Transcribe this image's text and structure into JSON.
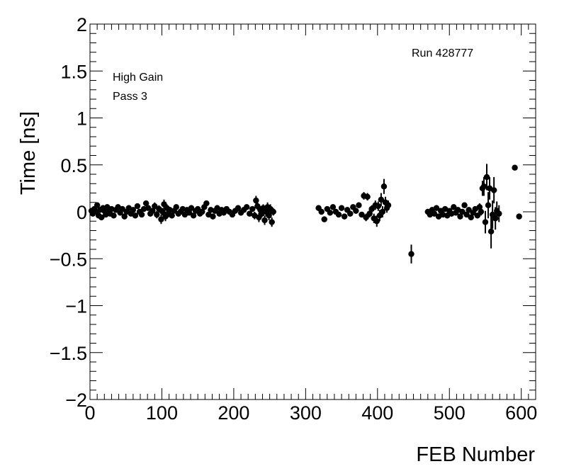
{
  "chart_data": {
    "type": "scatter",
    "title": "",
    "xlabel": "FEB Number",
    "ylabel": "Time [ns]",
    "xlim": [
      0,
      620
    ],
    "ylim": [
      -2,
      2
    ],
    "x_ticks": [
      0,
      100,
      200,
      300,
      400,
      500,
      600
    ],
    "y_ticks": [
      -2,
      -1.5,
      -1,
      -0.5,
      0,
      0.5,
      1,
      1.5,
      2
    ],
    "x_tick_labels": [
      "0",
      "100",
      "200",
      "300",
      "400",
      "500",
      "600"
    ],
    "y_tick_labels": [
      "−2",
      "−1.5",
      "−1",
      "−0.5",
      "0",
      "0.5",
      "1",
      "1.5",
      "2"
    ],
    "grid": false,
    "legend": "none",
    "annotations": {
      "run": "Run 428777",
      "gain": "High Gain",
      "pass": "Pass 3"
    },
    "marker_color": "#000000",
    "series": [
      {
        "points": [
          {
            "x": 2,
            "y": 0.01,
            "err": 0.03
          },
          {
            "x": 4,
            "y": -0.02,
            "err": 0.03
          },
          {
            "x": 6,
            "y": 0.03,
            "err": 0.03
          },
          {
            "x": 8,
            "y": 0.0,
            "err": 0.03
          },
          {
            "x": 10,
            "y": 0.07,
            "err": 0.03
          },
          {
            "x": 12,
            "y": -0.04,
            "err": 0.03
          },
          {
            "x": 14,
            "y": 0.02,
            "err": 0.03
          },
          {
            "x": 16,
            "y": -0.06,
            "err": 0.03
          },
          {
            "x": 18,
            "y": 0.04,
            "err": 0.03
          },
          {
            "x": 20,
            "y": 0.01,
            "err": 0.03
          },
          {
            "x": 22,
            "y": -0.03,
            "err": 0.03
          },
          {
            "x": 24,
            "y": 0.05,
            "err": 0.03
          },
          {
            "x": 26,
            "y": 0.0,
            "err": 0.03
          },
          {
            "x": 28,
            "y": -0.02,
            "err": 0.03
          },
          {
            "x": 30,
            "y": 0.03,
            "err": 0.03
          },
          {
            "x": 33,
            "y": -0.04,
            "err": 0.03
          },
          {
            "x": 36,
            "y": 0.02,
            "err": 0.03
          },
          {
            "x": 39,
            "y": 0.05,
            "err": 0.03
          },
          {
            "x": 42,
            "y": -0.01,
            "err": 0.03
          },
          {
            "x": 45,
            "y": 0.03,
            "err": 0.03
          },
          {
            "x": 48,
            "y": -0.05,
            "err": 0.03
          },
          {
            "x": 51,
            "y": 0.0,
            "err": 0.03
          },
          {
            "x": 54,
            "y": 0.04,
            "err": 0.03
          },
          {
            "x": 57,
            "y": -0.02,
            "err": 0.03
          },
          {
            "x": 60,
            "y": 0.02,
            "err": 0.03
          },
          {
            "x": 63,
            "y": -0.04,
            "err": 0.03
          },
          {
            "x": 66,
            "y": 0.06,
            "err": 0.03
          },
          {
            "x": 69,
            "y": 0.0,
            "err": 0.03
          },
          {
            "x": 72,
            "y": -0.03,
            "err": 0.03
          },
          {
            "x": 75,
            "y": 0.03,
            "err": 0.03
          },
          {
            "x": 78,
            "y": 0.09,
            "err": 0.03
          },
          {
            "x": 81,
            "y": 0.04,
            "err": 0.03
          },
          {
            "x": 84,
            "y": -0.02,
            "err": 0.03
          },
          {
            "x": 87,
            "y": 0.01,
            "err": 0.03
          },
          {
            "x": 90,
            "y": 0.06,
            "err": 0.04
          },
          {
            "x": 93,
            "y": -0.03,
            "err": 0.04
          },
          {
            "x": 96,
            "y": 0.03,
            "err": 0.04
          },
          {
            "x": 99,
            "y": -0.08,
            "err": 0.05
          },
          {
            "x": 101,
            "y": 0.0,
            "err": 0.04
          },
          {
            "x": 103,
            "y": 0.08,
            "err": 0.05
          },
          {
            "x": 105,
            "y": -0.05,
            "err": 0.05
          },
          {
            "x": 107,
            "y": 0.04,
            "err": 0.04
          },
          {
            "x": 109,
            "y": -0.02,
            "err": 0.04
          },
          {
            "x": 111,
            "y": 0.02,
            "err": 0.03
          },
          {
            "x": 114,
            "y": -0.04,
            "err": 0.03
          },
          {
            "x": 117,
            "y": 0.01,
            "err": 0.03
          },
          {
            "x": 120,
            "y": 0.05,
            "err": 0.03
          },
          {
            "x": 123,
            "y": -0.02,
            "err": 0.03
          },
          {
            "x": 126,
            "y": 0.0,
            "err": 0.03
          },
          {
            "x": 129,
            "y": 0.03,
            "err": 0.03
          },
          {
            "x": 132,
            "y": -0.03,
            "err": 0.03
          },
          {
            "x": 135,
            "y": 0.02,
            "err": 0.03
          },
          {
            "x": 138,
            "y": -0.01,
            "err": 0.03
          },
          {
            "x": 141,
            "y": 0.04,
            "err": 0.03
          },
          {
            "x": 144,
            "y": -0.04,
            "err": 0.03
          },
          {
            "x": 147,
            "y": 0.01,
            "err": 0.03
          },
          {
            "x": 150,
            "y": 0.03,
            "err": 0.03
          },
          {
            "x": 153,
            "y": -0.02,
            "err": 0.03
          },
          {
            "x": 156,
            "y": 0.0,
            "err": 0.03
          },
          {
            "x": 159,
            "y": 0.05,
            "err": 0.03
          },
          {
            "x": 162,
            "y": 0.09,
            "err": 0.03
          },
          {
            "x": 165,
            "y": -0.03,
            "err": 0.03
          },
          {
            "x": 168,
            "y": 0.02,
            "err": 0.03
          },
          {
            "x": 171,
            "y": -0.05,
            "err": 0.03
          },
          {
            "x": 174,
            "y": 0.01,
            "err": 0.03
          },
          {
            "x": 177,
            "y": 0.04,
            "err": 0.03
          },
          {
            "x": 180,
            "y": -0.02,
            "err": 0.03
          },
          {
            "x": 183,
            "y": 0.02,
            "err": 0.03
          },
          {
            "x": 186,
            "y": -0.01,
            "err": 0.03
          },
          {
            "x": 190,
            "y": 0.03,
            "err": 0.03
          },
          {
            "x": 194,
            "y": 0.0,
            "err": 0.03
          },
          {
            "x": 198,
            "y": -0.03,
            "err": 0.03
          },
          {
            "x": 202,
            "y": 0.01,
            "err": 0.03
          },
          {
            "x": 206,
            "y": 0.04,
            "err": 0.03
          },
          {
            "x": 210,
            "y": -0.01,
            "err": 0.03
          },
          {
            "x": 214,
            "y": 0.02,
            "err": 0.03
          },
          {
            "x": 218,
            "y": 0.05,
            "err": 0.03
          },
          {
            "x": 222,
            "y": -0.02,
            "err": 0.03
          },
          {
            "x": 226,
            "y": 0.03,
            "err": 0.03
          },
          {
            "x": 229,
            "y": -0.04,
            "err": 0.04
          },
          {
            "x": 231,
            "y": 0.12,
            "err": 0.05
          },
          {
            "x": 233,
            "y": 0.06,
            "err": 0.04
          },
          {
            "x": 235,
            "y": -0.06,
            "err": 0.05
          },
          {
            "x": 237,
            "y": 0.02,
            "err": 0.04
          },
          {
            "x": 239,
            "y": -0.02,
            "err": 0.04
          },
          {
            "x": 241,
            "y": 0.04,
            "err": 0.04
          },
          {
            "x": 243,
            "y": -0.09,
            "err": 0.05
          },
          {
            "x": 245,
            "y": 0.0,
            "err": 0.05
          },
          {
            "x": 247,
            "y": 0.05,
            "err": 0.05
          },
          {
            "x": 249,
            "y": -0.04,
            "err": 0.05
          },
          {
            "x": 251,
            "y": 0.03,
            "err": 0.05
          },
          {
            "x": 253,
            "y": -0.11,
            "err": 0.05
          },
          {
            "x": 255,
            "y": 0.0,
            "err": 0.04
          },
          {
            "x": 318,
            "y": 0.04,
            "err": 0.03
          },
          {
            "x": 322,
            "y": 0.0,
            "err": 0.03
          },
          {
            "x": 326,
            "y": -0.08,
            "err": 0.03
          },
          {
            "x": 330,
            "y": 0.03,
            "err": 0.03
          },
          {
            "x": 334,
            "y": -0.01,
            "err": 0.03
          },
          {
            "x": 338,
            "y": 0.05,
            "err": 0.03
          },
          {
            "x": 342,
            "y": 0.0,
            "err": 0.03
          },
          {
            "x": 346,
            "y": -0.03,
            "err": 0.03
          },
          {
            "x": 350,
            "y": 0.04,
            "err": 0.03
          },
          {
            "x": 354,
            "y": -0.05,
            "err": 0.03
          },
          {
            "x": 358,
            "y": 0.02,
            "err": 0.03
          },
          {
            "x": 362,
            "y": -0.02,
            "err": 0.03
          },
          {
            "x": 366,
            "y": 0.05,
            "err": 0.03
          },
          {
            "x": 370,
            "y": 0.01,
            "err": 0.03
          },
          {
            "x": 374,
            "y": 0.07,
            "err": 0.03
          },
          {
            "x": 378,
            "y": -0.03,
            "err": 0.03
          },
          {
            "x": 381,
            "y": 0.17,
            "err": 0.04
          },
          {
            "x": 384,
            "y": -0.06,
            "err": 0.04
          },
          {
            "x": 386,
            "y": 0.16,
            "err": 0.04
          },
          {
            "x": 389,
            "y": -0.02,
            "err": 0.04
          },
          {
            "x": 392,
            "y": 0.03,
            "err": 0.04
          },
          {
            "x": 395,
            "y": -0.07,
            "err": 0.05
          },
          {
            "x": 397,
            "y": 0.07,
            "err": 0.05
          },
          {
            "x": 399,
            "y": -0.1,
            "err": 0.06
          },
          {
            "x": 401,
            "y": 0.06,
            "err": 0.05
          },
          {
            "x": 403,
            "y": -0.04,
            "err": 0.06
          },
          {
            "x": 405,
            "y": 0.13,
            "err": 0.07
          },
          {
            "x": 407,
            "y": 0.0,
            "err": 0.06
          },
          {
            "x": 409,
            "y": 0.27,
            "err": 0.08
          },
          {
            "x": 411,
            "y": 0.1,
            "err": 0.06
          },
          {
            "x": 413,
            "y": 0.04,
            "err": 0.05
          },
          {
            "x": 415,
            "y": 0.07,
            "err": 0.05
          },
          {
            "x": 447,
            "y": -0.45,
            "err": 0.1
          },
          {
            "x": 470,
            "y": 0.0,
            "err": 0.03
          },
          {
            "x": 473,
            "y": -0.03,
            "err": 0.03
          },
          {
            "x": 476,
            "y": 0.02,
            "err": 0.03
          },
          {
            "x": 479,
            "y": -0.02,
            "err": 0.03
          },
          {
            "x": 482,
            "y": 0.04,
            "err": 0.03
          },
          {
            "x": 485,
            "y": -0.05,
            "err": 0.03
          },
          {
            "x": 488,
            "y": 0.01,
            "err": 0.03
          },
          {
            "x": 491,
            "y": -0.03,
            "err": 0.03
          },
          {
            "x": 494,
            "y": 0.03,
            "err": 0.03
          },
          {
            "x": 497,
            "y": -0.04,
            "err": 0.03
          },
          {
            "x": 500,
            "y": 0.01,
            "err": 0.03
          },
          {
            "x": 503,
            "y": -0.02,
            "err": 0.03
          },
          {
            "x": 506,
            "y": 0.05,
            "err": 0.03
          },
          {
            "x": 509,
            "y": -0.01,
            "err": 0.03
          },
          {
            "x": 512,
            "y": 0.02,
            "err": 0.03
          },
          {
            "x": 515,
            "y": -0.05,
            "err": 0.03
          },
          {
            "x": 518,
            "y": 0.0,
            "err": 0.03
          },
          {
            "x": 521,
            "y": 0.07,
            "err": 0.03
          },
          {
            "x": 524,
            "y": -0.03,
            "err": 0.03
          },
          {
            "x": 527,
            "y": 0.02,
            "err": 0.03
          },
          {
            "x": 530,
            "y": -0.06,
            "err": 0.03
          },
          {
            "x": 533,
            "y": -0.01,
            "err": 0.03
          },
          {
            "x": 536,
            "y": 0.03,
            "err": 0.03
          },
          {
            "x": 539,
            "y": -0.04,
            "err": 0.03
          },
          {
            "x": 542,
            "y": 0.05,
            "err": 0.04
          },
          {
            "x": 544,
            "y": 0.0,
            "err": 0.04
          },
          {
            "x": 546,
            "y": 0.25,
            "err": 0.08
          },
          {
            "x": 548,
            "y": 0.27,
            "err": 0.1
          },
          {
            "x": 550,
            "y": -0.11,
            "err": 0.12
          },
          {
            "x": 552,
            "y": 0.37,
            "err": 0.14
          },
          {
            "x": 554,
            "y": 0.07,
            "err": 0.14
          },
          {
            "x": 556,
            "y": 0.25,
            "err": 0.12
          },
          {
            "x": 558,
            "y": -0.21,
            "err": 0.18
          },
          {
            "x": 560,
            "y": -0.03,
            "err": 0.15
          },
          {
            "x": 562,
            "y": 0.23,
            "err": 0.14
          },
          {
            "x": 564,
            "y": -0.07,
            "err": 0.12
          },
          {
            "x": 566,
            "y": 0.01,
            "err": 0.1
          },
          {
            "x": 569,
            "y": -0.02,
            "err": 0.09
          },
          {
            "x": 591,
            "y": 0.47,
            "err": 0.01
          },
          {
            "x": 597,
            "y": -0.05,
            "err": 0.01
          }
        ]
      }
    ]
  }
}
